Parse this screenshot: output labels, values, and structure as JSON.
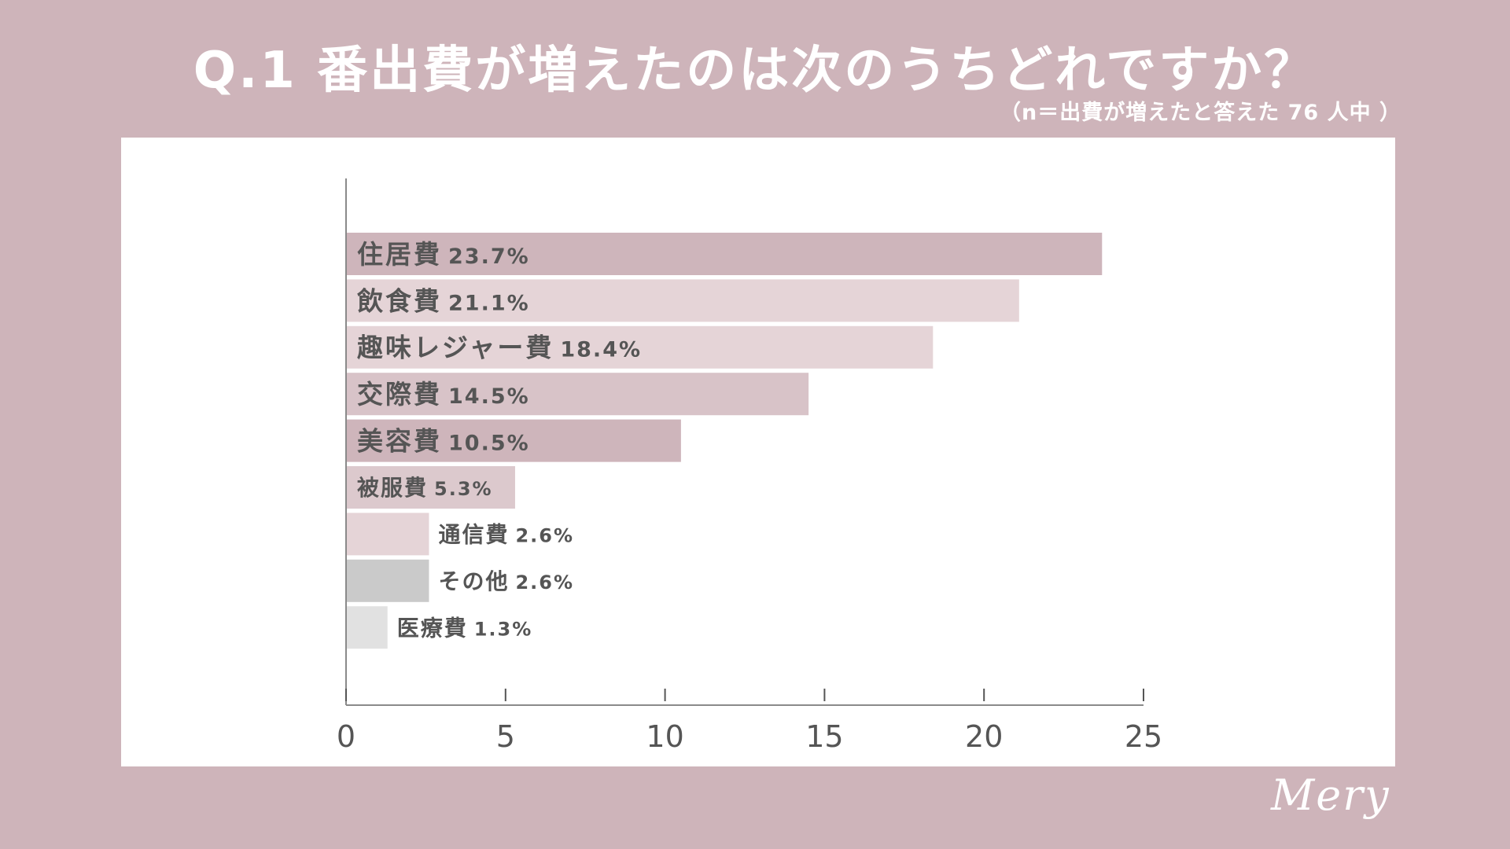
{
  "header": {
    "title": "Q.1 番出費が増えたのは次のうちどれですか？",
    "subtitle": "（n＝出費が増えたと答えた 76 人中 ）"
  },
  "brand": {
    "logo_text": "Mery"
  },
  "chart_data": {
    "type": "bar",
    "orientation": "horizontal",
    "title": "Q.1 番出費が増えたのは次のうちどれですか？",
    "categories": [
      "住居費",
      "飲食費",
      "趣味レジャー費",
      "交際費",
      "美容費",
      "被服費",
      "通信費",
      "その他",
      "医療費"
    ],
    "values": [
      23.7,
      21.1,
      18.4,
      14.5,
      10.5,
      5.3,
      2.6,
      2.6,
      1.3
    ],
    "value_labels": [
      "23.7%",
      "21.1%",
      "18.4%",
      "14.5%",
      "10.5%",
      "5.3%",
      "2.6%",
      "2.6%",
      "1.3%"
    ],
    "bar_colors": [
      "#ceb5bb",
      "#e5d4d7",
      "#e5d4d7",
      "#d8c3c8",
      "#ceb5bb",
      "#dcc9cd",
      "#e5d4d7",
      "#cacaca",
      "#e1e1e1"
    ],
    "xlim": [
      0,
      25
    ],
    "xticks": [
      0,
      5,
      10,
      15,
      20,
      25
    ],
    "xtick_labels": [
      "0",
      "5",
      "10",
      "15",
      "20",
      "25"
    ],
    "xlabel": "",
    "ylabel": "",
    "grid": false,
    "legend": "none"
  }
}
